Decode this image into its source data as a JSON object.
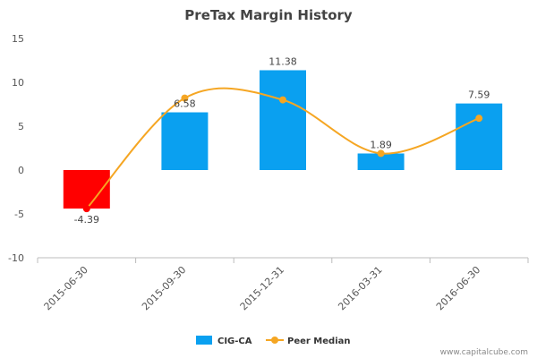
{
  "chart_data": {
    "type": "bar",
    "title": "PreTax Margin History",
    "categories": [
      "2015-06-30",
      "2015-09-30",
      "2015-12-31",
      "2016-03-31",
      "2016-06-30"
    ],
    "series": [
      {
        "name": "CIG-CA",
        "type": "bar",
        "values": [
          -4.39,
          6.58,
          11.38,
          1.89,
          7.59
        ],
        "labels": [
          "-4.39",
          "6.58",
          "11.38",
          "1.89",
          "7.59"
        ],
        "color": "#0aa0f0",
        "negative_color": "#ff0000"
      },
      {
        "name": "Peer Median",
        "type": "line",
        "smooth": true,
        "values": [
          -4.4,
          8.2,
          8.0,
          1.9,
          5.9
        ],
        "color": "#f5a623"
      }
    ],
    "ylim": [
      -10,
      15
    ],
    "yticks": [
      -10,
      -5,
      0,
      5,
      10,
      15
    ],
    "grid": false,
    "legend_position": "bottom-center"
  },
  "credit": "www.capitalcube.com"
}
